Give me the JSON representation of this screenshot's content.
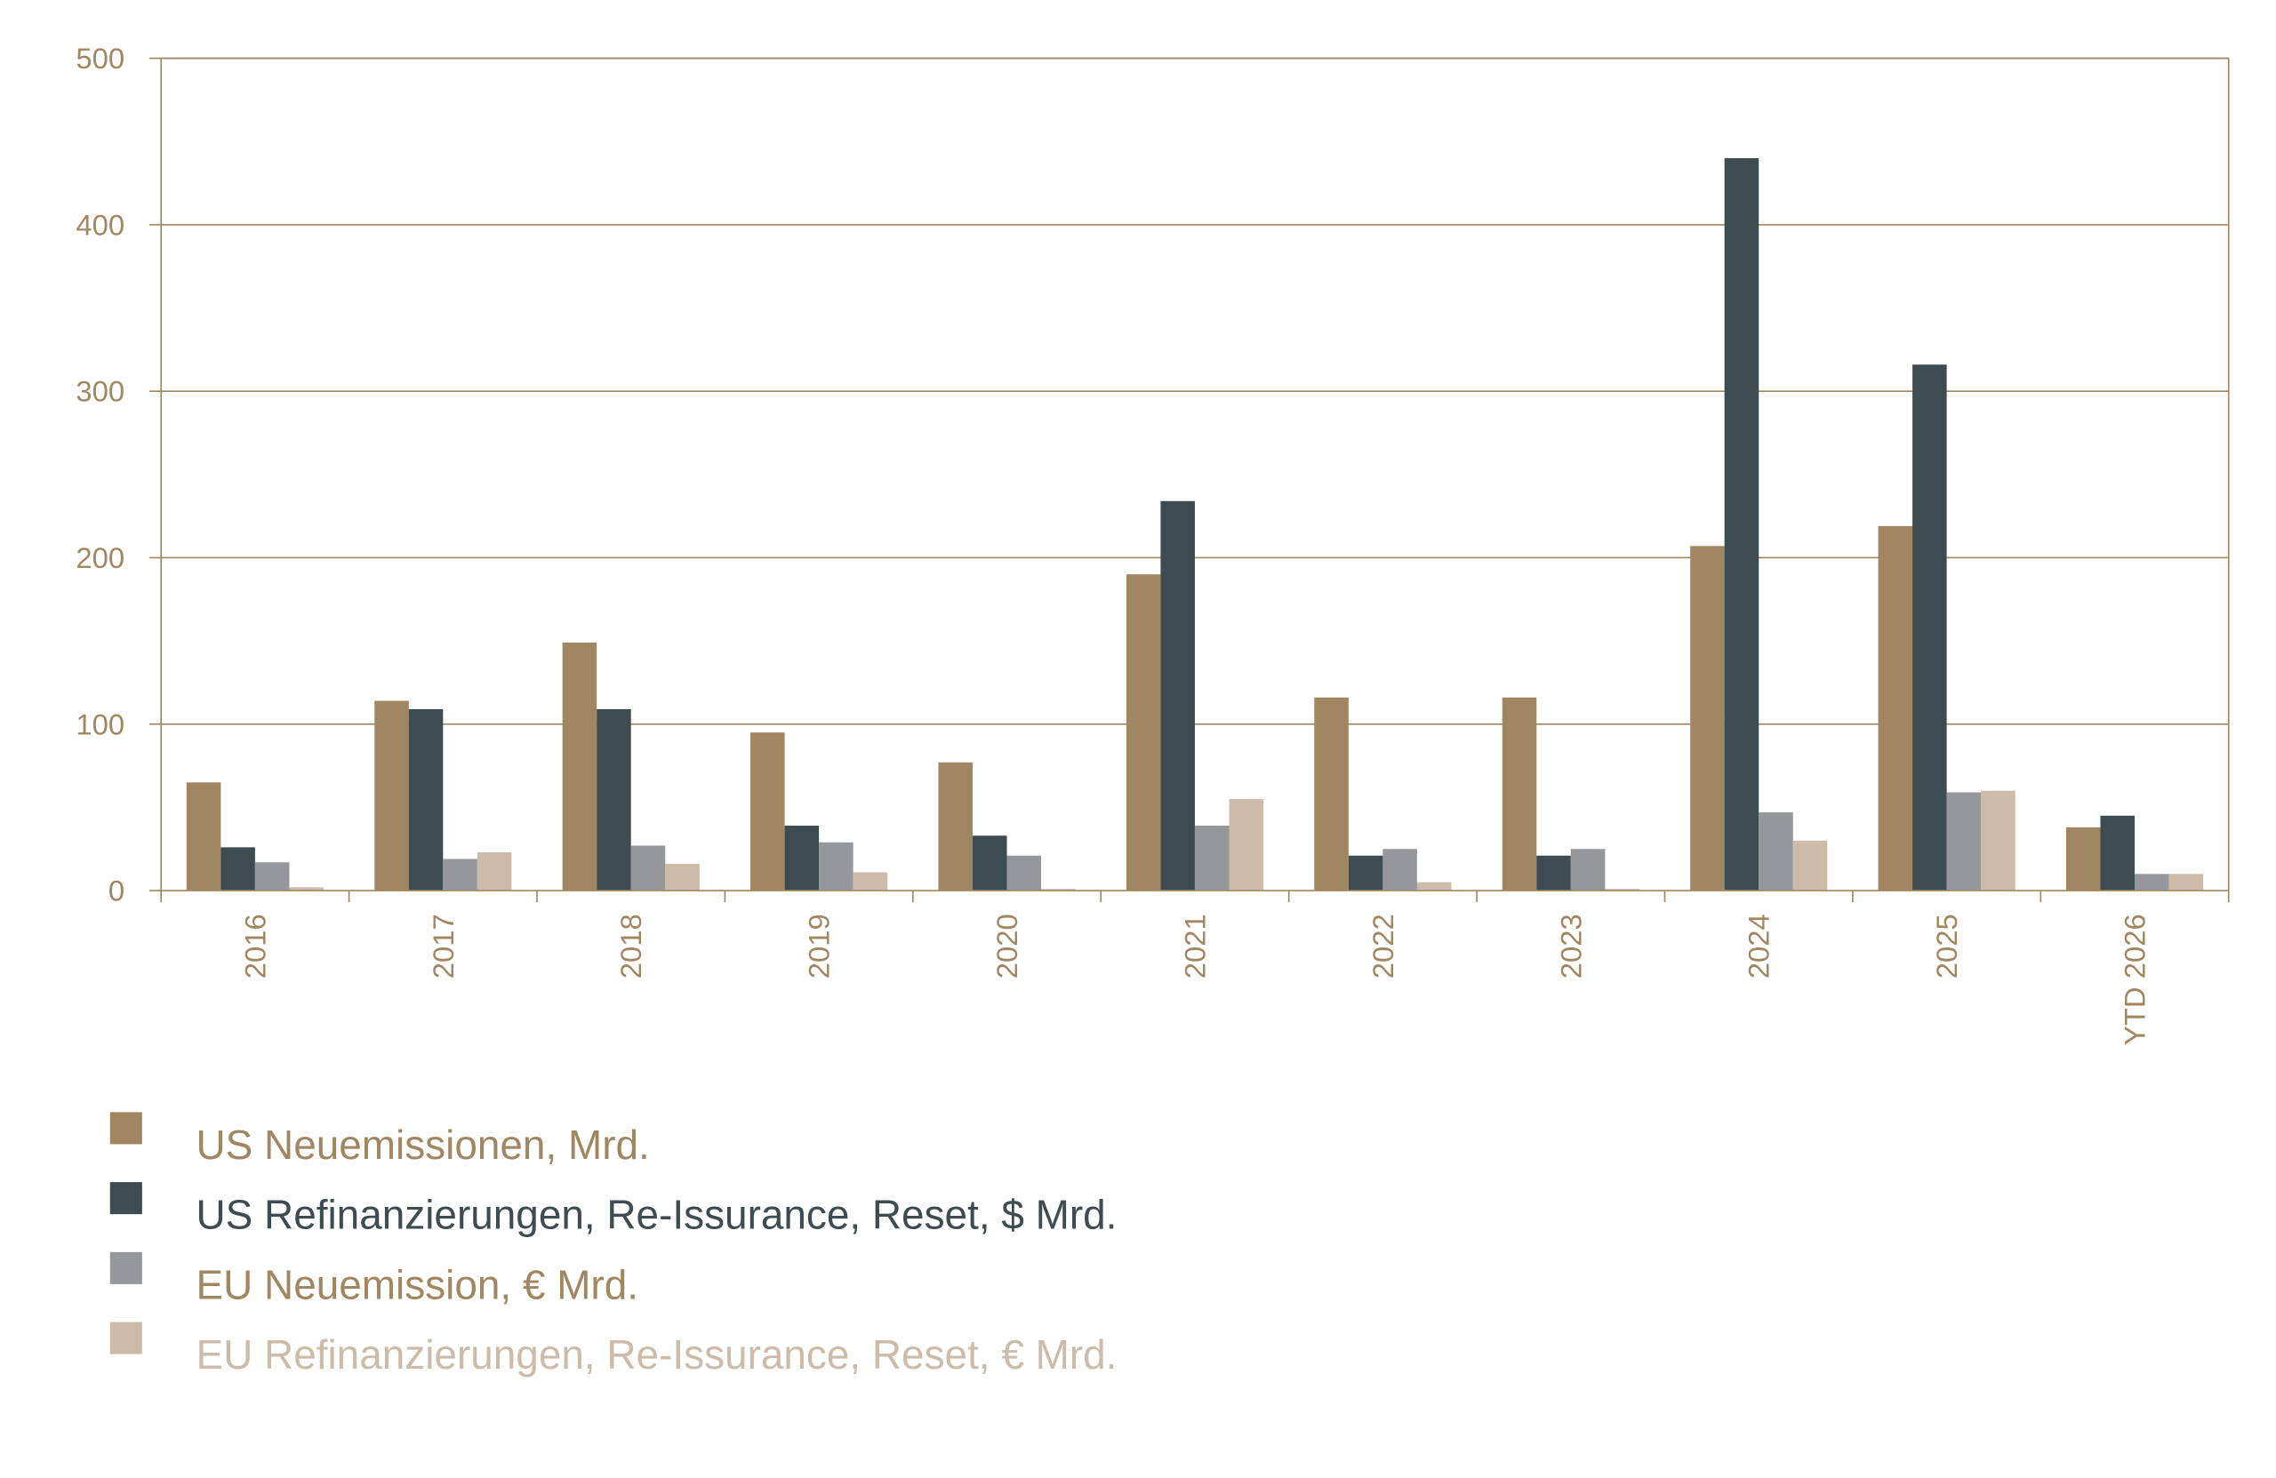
{
  "chart_data": {
    "type": "bar",
    "title": "",
    "xlabel": "",
    "ylabel": "",
    "ylim": [
      0,
      500
    ],
    "yticks": [
      "0",
      "100",
      "200",
      "300",
      "400",
      "500"
    ],
    "grid": true,
    "legend_placement": "bottom-left",
    "categories": [
      "2016",
      "2017",
      "2018",
      "2019",
      "2020",
      "2021",
      "2022",
      "2023",
      "2024",
      "2025",
      "YTD 2026"
    ],
    "series": [
      {
        "name": "US Neuemissionen,  Mrd.",
        "color": "#a08761",
        "text_color": "#a08761",
        "values": [
          65,
          114,
          149,
          95,
          77,
          190,
          116,
          116,
          207,
          219,
          38
        ]
      },
      {
        "name": "US Refinanzierungen, Re-Issurance, Reset, $ Mrd.",
        "color": "#3e4b51",
        "text_color": "#3e4b51",
        "values": [
          26,
          109,
          109,
          39,
          33,
          234,
          21,
          21,
          440,
          316,
          45
        ]
      },
      {
        "name": "EU Neuemission, € Mrd.",
        "color": "#96979b",
        "text_color": "#a08761",
        "values": [
          17,
          19,
          27,
          29,
          21,
          39,
          25,
          25,
          47,
          59,
          10
        ]
      },
      {
        "name": "EU Refinanzierungen, Re-Issurance, Reset, € Mrd.",
        "color": "#cbbba8",
        "text_color": "#cbbba8",
        "values": [
          2,
          23,
          16,
          11,
          1,
          55,
          5,
          1,
          30,
          60,
          10
        ]
      }
    ],
    "axis_color": "#a08761"
  }
}
